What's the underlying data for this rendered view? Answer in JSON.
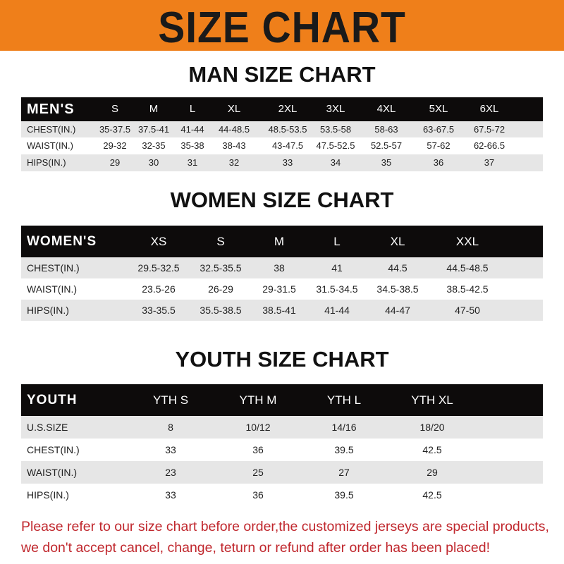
{
  "header": {
    "title": "SIZE CHART",
    "band_color": "#ef7f1a"
  },
  "men": {
    "title": "MAN SIZE CHART",
    "columns": [
      "MEN'S",
      "S",
      "M",
      "L",
      "XL",
      "2XL",
      "3XL",
      "4XL",
      "5XL",
      "6XL"
    ],
    "rows": [
      [
        "CHEST(IN.)",
        "35-37.5",
        "37.5-41",
        "41-44",
        "44-48.5",
        "48.5-53.5",
        "53.5-58",
        "58-63",
        "63-67.5",
        "67.5-72"
      ],
      [
        "WAIST(IN.)",
        "29-32",
        "32-35",
        "35-38",
        "38-43",
        "43-47.5",
        "47.5-52.5",
        "52.5-57",
        "57-62",
        "62-66.5"
      ],
      [
        "HIPS(IN.)",
        "29",
        "30",
        "31",
        "32",
        "33",
        "34",
        "35",
        "36",
        "37"
      ]
    ]
  },
  "women": {
    "title": "WOMEN SIZE CHART",
    "columns": [
      "WOMEN'S",
      "XS",
      "S",
      "M",
      "L",
      "XL",
      "XXL"
    ],
    "rows": [
      [
        "CHEST(IN.)",
        "29.5-32.5",
        "32.5-35.5",
        "38",
        "41",
        "44.5",
        "44.5-48.5"
      ],
      [
        "WAIST(IN.)",
        "23.5-26",
        "26-29",
        "29-31.5",
        "31.5-34.5",
        "34.5-38.5",
        "38.5-42.5"
      ],
      [
        "HIPS(IN.)",
        "33-35.5",
        "35.5-38.5",
        "38.5-41",
        "41-44",
        "44-47",
        "47-50"
      ]
    ]
  },
  "youth": {
    "title": "YOUTH SIZE CHART",
    "columns": [
      "YOUTH",
      "YTH S",
      "YTH M",
      "YTH L",
      "YTH XL"
    ],
    "rows": [
      [
        "U.S.SIZE",
        "8",
        "10/12",
        "14/16",
        "18/20"
      ],
      [
        "CHEST(IN.)",
        "33",
        "36",
        "39.5",
        "42.5"
      ],
      [
        "WAIST(IN.)",
        "23",
        "25",
        "27",
        "29"
      ],
      [
        "HIPS(IN.)",
        "33",
        "36",
        "39.5",
        "42.5"
      ]
    ]
  },
  "footer": {
    "line1": "Please refer to our size chart before order,the customized jerseys are special products,",
    "line2": "we don't accept cancel, change, teturn or refund after order has been placed!",
    "color": "#c0272d"
  }
}
